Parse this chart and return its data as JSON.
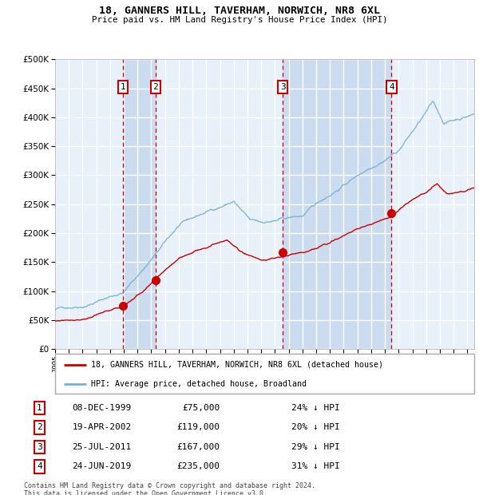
{
  "title": "18, GANNERS HILL, TAVERHAM, NORWICH, NR8 6XL",
  "subtitle": "Price paid vs. HM Land Registry's House Price Index (HPI)",
  "legend_label_red": "18, GANNERS HILL, TAVERHAM, NORWICH, NR8 6XL (detached house)",
  "legend_label_blue": "HPI: Average price, detached house, Broadland",
  "footer": "Contains HM Land Registry data © Crown copyright and database right 2024.\nThis data is licensed under the Open Government Licence v3.0.",
  "sales": [
    {
      "label": "1",
      "date": "08-DEC-1999",
      "price": 75000,
      "pct": "24%",
      "year_x": 1999.93
    },
    {
      "label": "2",
      "date": "19-APR-2002",
      "price": 119000,
      "pct": "20%",
      "year_x": 2002.3
    },
    {
      "label": "3",
      "date": "25-JUL-2011",
      "price": 167000,
      "pct": "29%",
      "year_x": 2011.57
    },
    {
      "label": "4",
      "date": "24-JUN-2019",
      "price": 235000,
      "pct": "31%",
      "year_x": 2019.48
    }
  ],
  "ylim": [
    0,
    500000
  ],
  "xlim": [
    1995.0,
    2025.5
  ],
  "yticks": [
    0,
    50000,
    100000,
    150000,
    200000,
    250000,
    300000,
    350000,
    400000,
    450000,
    500000
  ],
  "background_color": "#ffffff",
  "plot_bg_color": "#e8f0fa",
  "grid_color": "#ffffff",
  "red_color": "#cc0000",
  "blue_color": "#7aafd4",
  "shaded_color": "#ccdcf0"
}
